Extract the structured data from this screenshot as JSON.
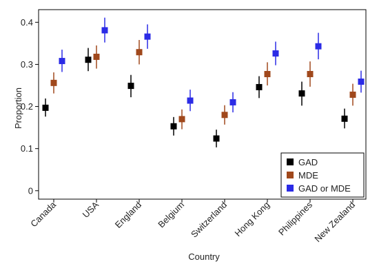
{
  "chart_data": {
    "type": "scatter",
    "xlabel": "Country",
    "ylabel": "Proportion",
    "ylim": [
      -0.02,
      0.43
    ],
    "yticks": [
      "0",
      "0.1",
      "0.2",
      "0.3",
      "0.4"
    ],
    "categories": [
      "Canada",
      "USA",
      "England",
      "Belgium",
      "Switzerland",
      "Hong Kong",
      "Philippines",
      "New Zealand"
    ],
    "grid": false,
    "legend_position": "bottom-right",
    "series": [
      {
        "name": "GAD",
        "color": "#000000",
        "values": [
          0.197,
          0.311,
          0.249,
          0.153,
          0.124,
          0.246,
          0.231,
          0.171
        ],
        "lower": [
          0.176,
          0.284,
          0.222,
          0.131,
          0.103,
          0.22,
          0.202,
          0.148
        ],
        "upper": [
          0.219,
          0.339,
          0.275,
          0.175,
          0.145,
          0.272,
          0.259,
          0.195
        ]
      },
      {
        "name": "MDE",
        "color": "#a0481c",
        "values": [
          0.256,
          0.318,
          0.329,
          0.17,
          0.18,
          0.277,
          0.277,
          0.228
        ],
        "lower": [
          0.231,
          0.29,
          0.3,
          0.146,
          0.157,
          0.25,
          0.247,
          0.202
        ],
        "upper": [
          0.281,
          0.345,
          0.358,
          0.193,
          0.203,
          0.305,
          0.307,
          0.254
        ]
      },
      {
        "name": "GAD or MDE",
        "color": "#2b2be6",
        "values": [
          0.308,
          0.381,
          0.366,
          0.214,
          0.21,
          0.326,
          0.343,
          0.259
        ],
        "lower": [
          0.282,
          0.352,
          0.337,
          0.189,
          0.186,
          0.298,
          0.312,
          0.233
        ],
        "upper": [
          0.335,
          0.411,
          0.395,
          0.24,
          0.234,
          0.354,
          0.375,
          0.285
        ]
      }
    ]
  }
}
